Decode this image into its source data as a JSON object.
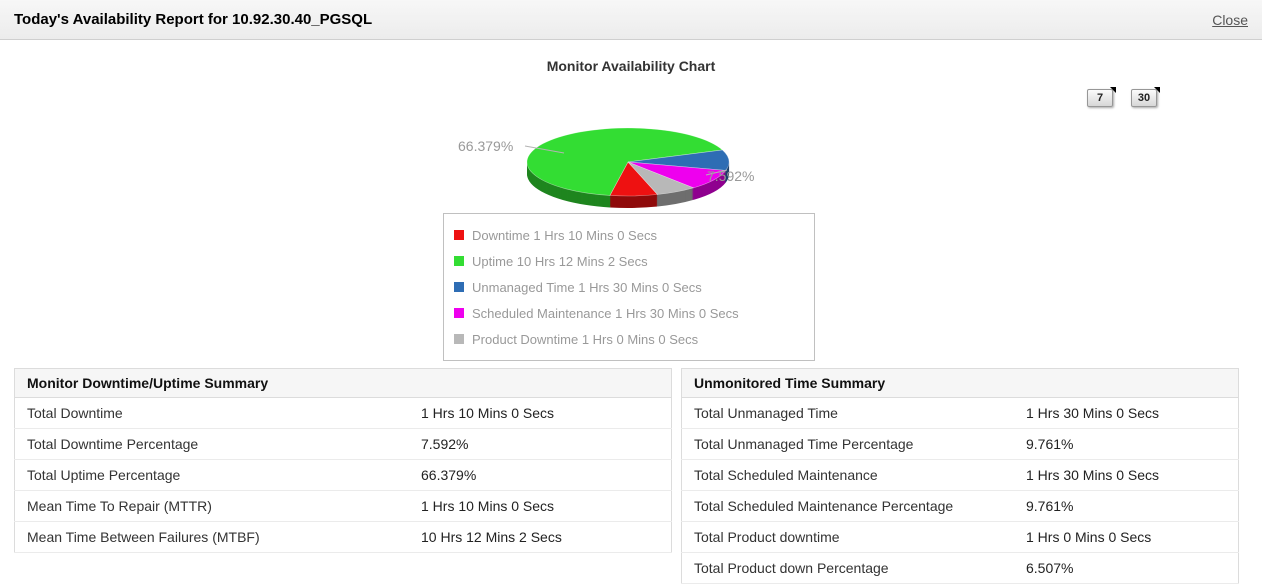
{
  "header": {
    "title": "Today's Availability Report for 10.92.30.40_PGSQL",
    "close_label": "Close"
  },
  "chart": {
    "title": "Monitor Availability Chart",
    "range_buttons": [
      "7",
      "30"
    ],
    "uptime_callout": "66.379%",
    "downtime_callout": "7.592%"
  },
  "chart_data": {
    "type": "pie",
    "title": "Monitor Availability Chart",
    "unit": "percent",
    "legend_position": "below",
    "slices": [
      {
        "label": "Downtime 1 Hrs 10 Mins 0 Secs",
        "value": 7.592,
        "color": "#ee1111"
      },
      {
        "label": "Uptime 10 Hrs 12 Mins 2 Secs",
        "value": 66.379,
        "color": "#33dd33"
      },
      {
        "label": "Unmanaged Time 1 Hrs 30 Mins 0 Secs",
        "value": 9.761,
        "color": "#2e6db4"
      },
      {
        "label": "Scheduled Maintenance 1 Hrs 30 Mins 0 Secs",
        "value": 9.761,
        "color": "#ee00ee"
      },
      {
        "label": "Product Downtime 1 Hrs 0 Mins 0 Secs",
        "value": 6.507,
        "color": "#b8b8b8"
      }
    ],
    "callouts": {
      "uptime_pct": "66.379%",
      "downtime_pct": "7.592%"
    }
  },
  "tables": {
    "left": {
      "title": "Monitor Downtime/Uptime Summary",
      "rows": [
        {
          "label": "Total Downtime",
          "value": "1 Hrs 10 Mins 0 Secs"
        },
        {
          "label": "Total Downtime Percentage",
          "value": "7.592%"
        },
        {
          "label": "Total Uptime Percentage",
          "value": "66.379%"
        },
        {
          "label": "Mean Time To Repair (MTTR)",
          "value": "1 Hrs 10 Mins 0 Secs"
        },
        {
          "label": "Mean Time Between Failures (MTBF)",
          "value": "10 Hrs 12 Mins 2 Secs"
        }
      ]
    },
    "right": {
      "title": "Unmonitored Time Summary",
      "rows": [
        {
          "label": "Total Unmanaged Time",
          "value": "1 Hrs 30 Mins 0 Secs"
        },
        {
          "label": "Total Unmanaged Time Percentage",
          "value": "9.761%"
        },
        {
          "label": "Total Scheduled Maintenance",
          "value": "1 Hrs 30 Mins 0 Secs"
        },
        {
          "label": "Total Scheduled Maintenance Percentage",
          "value": "9.761%"
        },
        {
          "label": "Total Product downtime",
          "value": "1 Hrs 0 Mins 0 Secs"
        },
        {
          "label": "Total Product down Percentage",
          "value": "6.507%"
        }
      ]
    }
  }
}
